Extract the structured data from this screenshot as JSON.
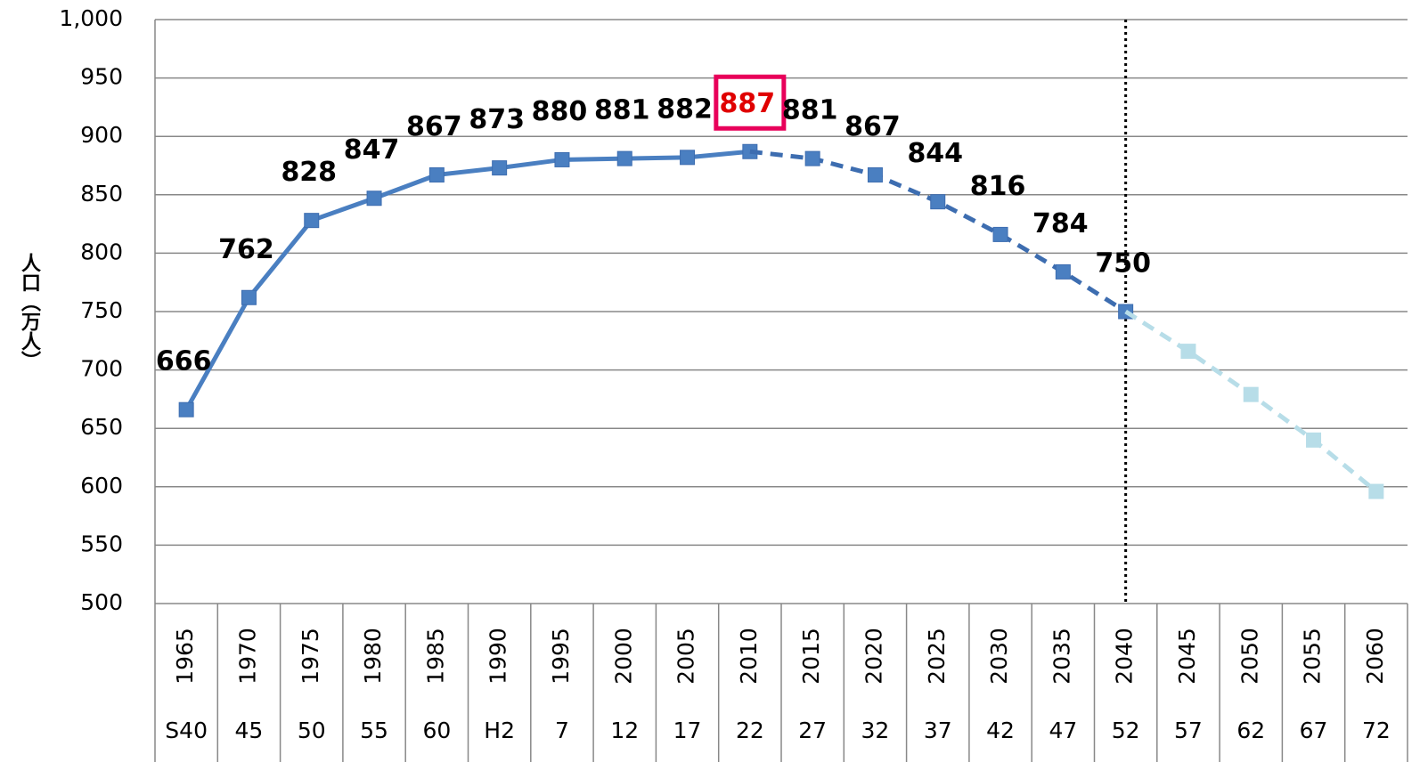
{
  "chart_data": {
    "type": "line",
    "y_label": "人口（万人）",
    "categories": [
      "1965",
      "1970",
      "1975",
      "1980",
      "1985",
      "1990",
      "1995",
      "2000",
      "2005",
      "2010",
      "2015",
      "2020",
      "2025",
      "2030",
      "2035",
      "2040",
      "2045",
      "2050",
      "2055",
      "2060"
    ],
    "era_labels": [
      "S40",
      "45",
      "50",
      "55",
      "60",
      "H2",
      "7",
      "12",
      "17",
      "22",
      "27",
      "32",
      "37",
      "42",
      "47",
      "52",
      "57",
      "62",
      "67",
      "72"
    ],
    "series": [
      {
        "color": "#4a7fc1",
        "dashed": false,
        "labels": true,
        "connect": false,
        "highlight": 9,
        "values": [
          666,
          762,
          828,
          847,
          867,
          873,
          880,
          881,
          882,
          887,
          null,
          null,
          null,
          null,
          null,
          null,
          null,
          null,
          null,
          null
        ]
      },
      {
        "color": "#4a7fc1",
        "line_color": "#3d6db0",
        "dashed": true,
        "labels": true,
        "connect": true,
        "values": [
          null,
          null,
          null,
          null,
          null,
          null,
          null,
          null,
          null,
          null,
          881,
          867,
          844,
          816,
          784,
          750,
          null,
          null,
          null,
          null
        ]
      },
      {
        "color": "#b7dde8",
        "dashed": true,
        "labels": false,
        "connect": true,
        "values": [
          null,
          null,
          null,
          null,
          null,
          null,
          null,
          null,
          null,
          null,
          null,
          null,
          null,
          null,
          null,
          null,
          716,
          679,
          640,
          596
        ]
      }
    ],
    "vline": "2040",
    "highlight_color": "#e8005a",
    "ylim": [
      500,
      1000
    ],
    "yticks": [
      500,
      550,
      600,
      650,
      700,
      750,
      800,
      850,
      900,
      950,
      {
        "value": 1000,
        "label": "1,000"
      }
    ],
    "grid": true
  }
}
